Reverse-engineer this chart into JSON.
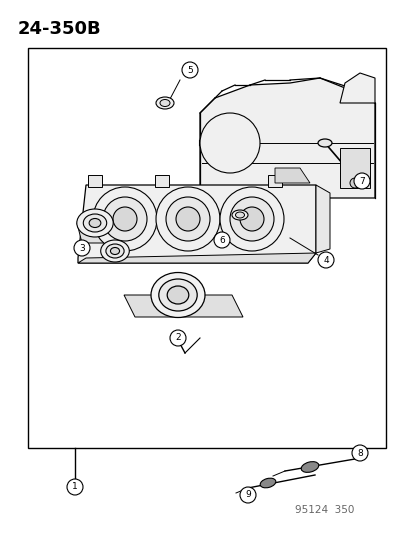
{
  "title": "24-350B",
  "footer": "95124  350",
  "bg_color": "#ffffff",
  "line_color": "#000000",
  "fig_width": 4.14,
  "fig_height": 5.33,
  "dpi": 100,
  "title_fontsize": 13,
  "footer_fontsize": 7.5
}
